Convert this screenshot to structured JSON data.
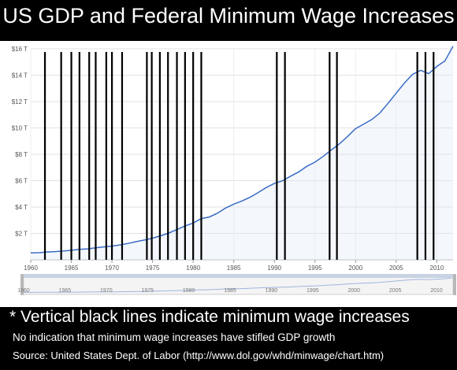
{
  "chart_data": {
    "type": "line",
    "title": "US GDP and Federal Minimum Wage Increases",
    "xlim": [
      1960,
      2012
    ],
    "ylim": [
      0,
      16
    ],
    "x_ticks": [
      "1960",
      "1965",
      "1970",
      "1975",
      "1980",
      "1985",
      "1990",
      "1995",
      "2000",
      "2005",
      "2010"
    ],
    "y_ticks": [
      "$2 T",
      "$4 T",
      "$6 T",
      "$8 T",
      "$10 T",
      "$12 T",
      "$14 T",
      "$16 T"
    ],
    "nav_ticks": [
      "1960",
      "1965",
      "1970",
      "1975",
      "1980",
      "1985",
      "1990",
      "1995",
      "2000",
      "2005",
      "2010"
    ],
    "series": [
      {
        "color": "#3a6cc6",
        "x": [
          1960,
          1961,
          1962,
          1963,
          1964,
          1965,
          1966,
          1967,
          1968,
          1969,
          1970,
          1971,
          1972,
          1973,
          1974,
          1975,
          1976,
          1977,
          1978,
          1979,
          1980,
          1981,
          1982,
          1983,
          1984,
          1985,
          1986,
          1987,
          1988,
          1989,
          1990,
          1991,
          1992,
          1993,
          1994,
          1995,
          1996,
          1997,
          1998,
          1999,
          2000,
          2001,
          2002,
          2003,
          2004,
          2005,
          2006,
          2007,
          2008,
          2009,
          2010,
          2011,
          2012
        ],
        "values": [
          0.52,
          0.54,
          0.59,
          0.62,
          0.66,
          0.72,
          0.79,
          0.83,
          0.91,
          0.98,
          1.04,
          1.13,
          1.24,
          1.38,
          1.5,
          1.64,
          1.82,
          2.03,
          2.29,
          2.56,
          2.79,
          3.13,
          3.25,
          3.54,
          3.93,
          4.22,
          4.46,
          4.74,
          5.1,
          5.48,
          5.8,
          5.99,
          6.34,
          6.67,
          7.09,
          7.41,
          7.84,
          8.33,
          8.79,
          9.35,
          9.95,
          10.29,
          10.64,
          11.14,
          11.87,
          12.64,
          13.4,
          14.06,
          14.37,
          14.12,
          14.66,
          15.08,
          16.2
        ]
      }
    ],
    "min_wage_increase_years": [
      1961.75,
      1963.75,
      1965,
      1966,
      1967.2,
      1968,
      1969.3,
      1970,
      1971.25,
      1974.3,
      1974.9,
      1975.9,
      1976.9,
      1978,
      1979,
      1980,
      1981,
      1990.3,
      1991.3,
      1996.8,
      1997.7,
      2007.6,
      2008.6,
      2009.6
    ]
  },
  "note": "* Vertical black lines indicate minimum wage increases",
  "subnote": "No indication that minimum wage increases have stifled GDP growth",
  "source": "Source: United States Dept. of Labor (http://www.dol.gov/whd/minwage/chart.htm)"
}
